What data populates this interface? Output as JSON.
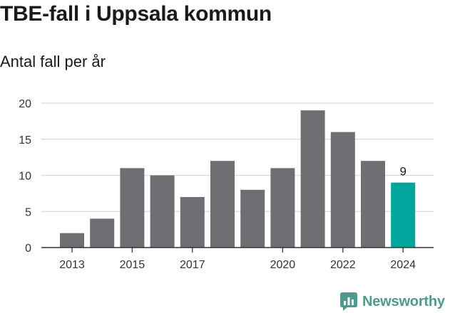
{
  "title": "TBE-fall i Uppsala kommun",
  "subtitle": "Antal fall per år",
  "brand": "Newsworthy",
  "colors": {
    "bar": "#6f6e73",
    "highlight": "#00a69c",
    "grid": "#d9d9d9",
    "axis": "#333333",
    "brand": "#4c9b8e"
  },
  "chart_data": {
    "type": "bar",
    "categories": [
      "2013",
      "2014",
      "2015",
      "2016",
      "2017",
      "2018",
      "2019",
      "2020",
      "2021",
      "2022",
      "2023",
      "2024"
    ],
    "values": [
      2,
      4,
      11,
      10,
      7,
      12,
      8,
      11,
      19,
      16,
      12,
      9
    ],
    "tick_labels": [
      "2013",
      "2015",
      "2017",
      "2020",
      "2022",
      "2024"
    ],
    "yticks": [
      0,
      5,
      10,
      15,
      20
    ],
    "ylim": [
      0,
      20
    ],
    "highlight": {
      "category": "2024",
      "label": "9"
    },
    "grid": true
  }
}
